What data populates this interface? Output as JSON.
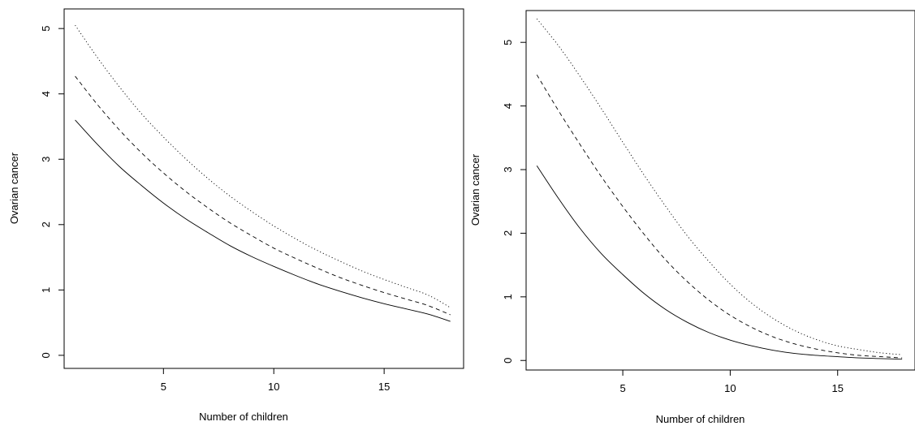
{
  "chart_data": [
    {
      "type": "line",
      "xlabel": "Number of children",
      "ylabel": "Ovarian cancer",
      "xlim": [
        0.5,
        18.6
      ],
      "ylim": [
        -0.2,
        5.3
      ],
      "xticks": [
        5,
        10,
        15
      ],
      "yticks": [
        0,
        1,
        2,
        3,
        4,
        5
      ],
      "grid": false,
      "legend": "none",
      "series": [
        {
          "style": "solid",
          "x": [
            1,
            2,
            3,
            4,
            5,
            6,
            7,
            8,
            9,
            10,
            11,
            12,
            13,
            14,
            15,
            16,
            17,
            18
          ],
          "y": [
            3.6,
            3.23,
            2.89,
            2.6,
            2.33,
            2.09,
            1.88,
            1.68,
            1.51,
            1.36,
            1.22,
            1.09,
            0.98,
            0.88,
            0.79,
            0.71,
            0.63,
            0.52
          ]
        },
        {
          "style": "dashed",
          "x": [
            1,
            2,
            3,
            4,
            5,
            6,
            7,
            8,
            9,
            10,
            11,
            12,
            13,
            14,
            15,
            16,
            17,
            18
          ],
          "y": [
            4.27,
            3.84,
            3.45,
            3.1,
            2.79,
            2.51,
            2.26,
            2.03,
            1.83,
            1.64,
            1.48,
            1.33,
            1.19,
            1.07,
            0.96,
            0.86,
            0.76,
            0.62
          ]
        },
        {
          "style": "dotted",
          "x": [
            1,
            2,
            3,
            4,
            5,
            6,
            7,
            8,
            9,
            10,
            11,
            12,
            13,
            14,
            15,
            16,
            17,
            18
          ],
          "y": [
            5.05,
            4.56,
            4.11,
            3.7,
            3.34,
            3.01,
            2.71,
            2.44,
            2.2,
            1.98,
            1.78,
            1.6,
            1.44,
            1.29,
            1.16,
            1.04,
            0.92,
            0.73
          ]
        }
      ]
    },
    {
      "type": "line",
      "xlabel": "Number of children",
      "ylabel": "Ovarian cancer",
      "xlim": [
        0.5,
        18.6
      ],
      "ylim": [
        -0.15,
        5.5
      ],
      "xticks": [
        5,
        10,
        15
      ],
      "yticks": [
        0,
        1,
        2,
        3,
        4,
        5
      ],
      "grid": false,
      "legend": "none",
      "series": [
        {
          "style": "solid",
          "x": [
            1,
            2,
            3,
            4,
            5,
            6,
            7,
            8,
            9,
            10,
            11,
            12,
            13,
            14,
            15,
            16,
            17,
            18
          ],
          "y": [
            3.06,
            2.55,
            2.08,
            1.68,
            1.35,
            1.05,
            0.8,
            0.6,
            0.44,
            0.32,
            0.23,
            0.16,
            0.11,
            0.08,
            0.06,
            0.04,
            0.03,
            0.02
          ]
        },
        {
          "style": "dashed",
          "x": [
            1,
            2,
            3,
            4,
            5,
            6,
            7,
            8,
            9,
            10,
            11,
            12,
            13,
            14,
            15,
            16,
            17,
            18
          ],
          "y": [
            4.49,
            3.93,
            3.4,
            2.89,
            2.42,
            1.98,
            1.58,
            1.24,
            0.95,
            0.71,
            0.52,
            0.37,
            0.26,
            0.18,
            0.12,
            0.08,
            0.06,
            0.04
          ]
        },
        {
          "style": "dotted",
          "x": [
            1,
            2,
            3,
            4,
            5,
            6,
            7,
            8,
            9,
            10,
            11,
            12,
            13,
            14,
            15,
            16,
            17,
            18
          ],
          "y": [
            5.37,
            4.95,
            4.47,
            3.96,
            3.43,
            2.91,
            2.42,
            1.96,
            1.56,
            1.2,
            0.9,
            0.66,
            0.47,
            0.33,
            0.23,
            0.17,
            0.12,
            0.09
          ]
        }
      ]
    }
  ]
}
